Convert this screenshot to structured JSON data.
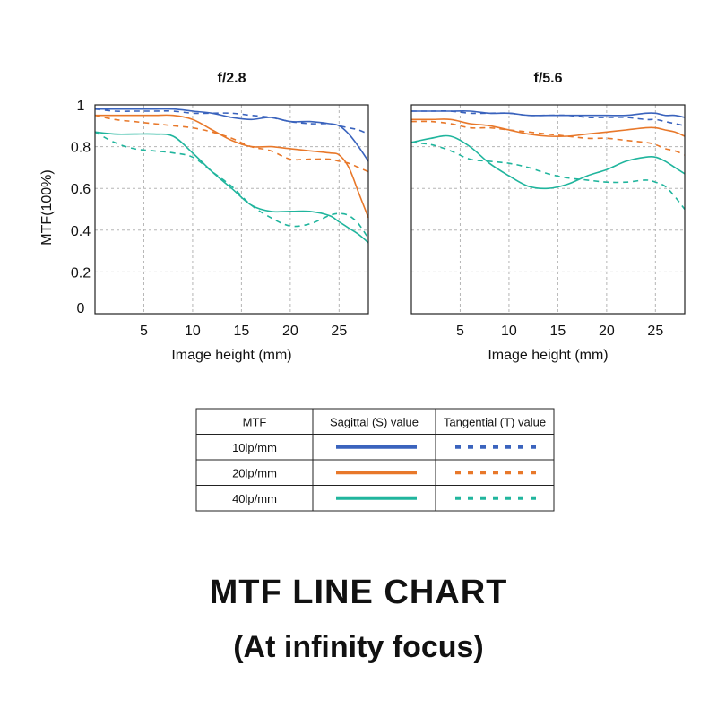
{
  "title": "MTF LINE CHART",
  "subtitle": "(At infinity focus)",
  "colors": {
    "10lp": "#3a63bd",
    "20lp": "#e8782a",
    "40lp": "#20b59d",
    "grid": "#b5b5b5",
    "frame": "#222222"
  },
  "legend": {
    "header": [
      "MTF",
      "Sagittal (S) value",
      "Tangential (T) value"
    ],
    "rows": [
      {
        "label": "10lp/mm",
        "color": "#3a63bd"
      },
      {
        "label": "20lp/mm",
        "color": "#e8782a"
      },
      {
        "label": "40lp/mm",
        "color": "#20b59d"
      }
    ]
  },
  "chart_data": [
    {
      "type": "line",
      "title": "f/2.8",
      "xlabel": "Image height (mm)",
      "ylabel": "MTF(100%)",
      "xlim": [
        0,
        28
      ],
      "ylim": [
        0,
        1
      ],
      "xticks": [
        5,
        10,
        15,
        20,
        25
      ],
      "yticks": [
        "0",
        "0.2",
        "0.4",
        "0.6",
        "0.8",
        "1"
      ],
      "grid": true,
      "x": [
        0,
        2,
        4,
        6,
        8,
        10,
        12,
        14,
        16,
        18,
        20,
        22,
        24,
        25,
        26,
        27,
        28
      ],
      "series": [
        {
          "name": "10lp/mm Sagittal",
          "color": "#3a63bd",
          "dash": false,
          "values": [
            0.98,
            0.98,
            0.98,
            0.98,
            0.98,
            0.97,
            0.96,
            0.94,
            0.93,
            0.94,
            0.92,
            0.92,
            0.91,
            0.9,
            0.86,
            0.8,
            0.73
          ]
        },
        {
          "name": "10lp/mm Tangential",
          "color": "#3a63bd",
          "dash": true,
          "values": [
            0.98,
            0.97,
            0.97,
            0.97,
            0.97,
            0.96,
            0.96,
            0.96,
            0.95,
            0.94,
            0.92,
            0.91,
            0.91,
            0.9,
            0.89,
            0.88,
            0.86
          ]
        },
        {
          "name": "20lp/mm Sagittal",
          "color": "#e8782a",
          "dash": false,
          "values": [
            0.95,
            0.95,
            0.95,
            0.95,
            0.95,
            0.93,
            0.88,
            0.83,
            0.8,
            0.8,
            0.79,
            0.78,
            0.77,
            0.76,
            0.7,
            0.58,
            0.46
          ]
        },
        {
          "name": "20lp/mm Tangential",
          "color": "#e8782a",
          "dash": true,
          "values": [
            0.95,
            0.93,
            0.92,
            0.91,
            0.9,
            0.89,
            0.87,
            0.84,
            0.8,
            0.78,
            0.74,
            0.74,
            0.74,
            0.73,
            0.72,
            0.7,
            0.68
          ]
        },
        {
          "name": "40lp/mm Sagittal",
          "color": "#20b59d",
          "dash": false,
          "values": [
            0.87,
            0.86,
            0.86,
            0.86,
            0.85,
            0.77,
            0.68,
            0.6,
            0.52,
            0.49,
            0.49,
            0.49,
            0.47,
            0.44,
            0.41,
            0.38,
            0.34
          ]
        },
        {
          "name": "40lp/mm Tangential",
          "color": "#20b59d",
          "dash": true,
          "values": [
            0.87,
            0.82,
            0.79,
            0.78,
            0.77,
            0.75,
            0.68,
            0.61,
            0.52,
            0.46,
            0.42,
            0.43,
            0.47,
            0.48,
            0.47,
            0.43,
            0.36
          ]
        }
      ]
    },
    {
      "type": "line",
      "title": "f/5.6",
      "xlabel": "Image height (mm)",
      "ylabel": "",
      "xlim": [
        0,
        28
      ],
      "ylim": [
        0,
        1
      ],
      "xticks": [
        5,
        10,
        15,
        20,
        25
      ],
      "grid": true,
      "x": [
        0,
        2,
        4,
        6,
        8,
        10,
        12,
        14,
        16,
        18,
        20,
        22,
        24,
        25,
        26,
        27,
        28
      ],
      "series": [
        {
          "name": "10lp/mm Sagittal",
          "color": "#3a63bd",
          "dash": false,
          "values": [
            0.97,
            0.97,
            0.97,
            0.97,
            0.96,
            0.96,
            0.95,
            0.95,
            0.95,
            0.95,
            0.95,
            0.95,
            0.96,
            0.96,
            0.95,
            0.95,
            0.94
          ]
        },
        {
          "name": "10lp/mm Tangential",
          "color": "#3a63bd",
          "dash": true,
          "values": [
            0.97,
            0.97,
            0.97,
            0.96,
            0.96,
            0.96,
            0.95,
            0.95,
            0.95,
            0.94,
            0.94,
            0.94,
            0.93,
            0.93,
            0.92,
            0.91,
            0.9
          ]
        },
        {
          "name": "20lp/mm Sagittal",
          "color": "#e8782a",
          "dash": false,
          "values": [
            0.93,
            0.93,
            0.93,
            0.91,
            0.9,
            0.88,
            0.86,
            0.85,
            0.85,
            0.86,
            0.87,
            0.88,
            0.89,
            0.89,
            0.88,
            0.87,
            0.85
          ]
        },
        {
          "name": "20lp/mm Tangential",
          "color": "#e8782a",
          "dash": true,
          "values": [
            0.92,
            0.92,
            0.91,
            0.89,
            0.89,
            0.88,
            0.87,
            0.86,
            0.85,
            0.84,
            0.84,
            0.83,
            0.82,
            0.81,
            0.79,
            0.78,
            0.76
          ]
        },
        {
          "name": "40lp/mm Sagittal",
          "color": "#20b59d",
          "dash": false,
          "values": [
            0.82,
            0.84,
            0.85,
            0.8,
            0.72,
            0.66,
            0.61,
            0.6,
            0.62,
            0.66,
            0.69,
            0.73,
            0.75,
            0.75,
            0.73,
            0.7,
            0.67
          ]
        },
        {
          "name": "40lp/mm Tangential",
          "color": "#20b59d",
          "dash": true,
          "values": [
            0.82,
            0.81,
            0.78,
            0.74,
            0.73,
            0.72,
            0.7,
            0.67,
            0.65,
            0.64,
            0.63,
            0.63,
            0.64,
            0.63,
            0.61,
            0.56,
            0.5
          ]
        }
      ]
    }
  ]
}
